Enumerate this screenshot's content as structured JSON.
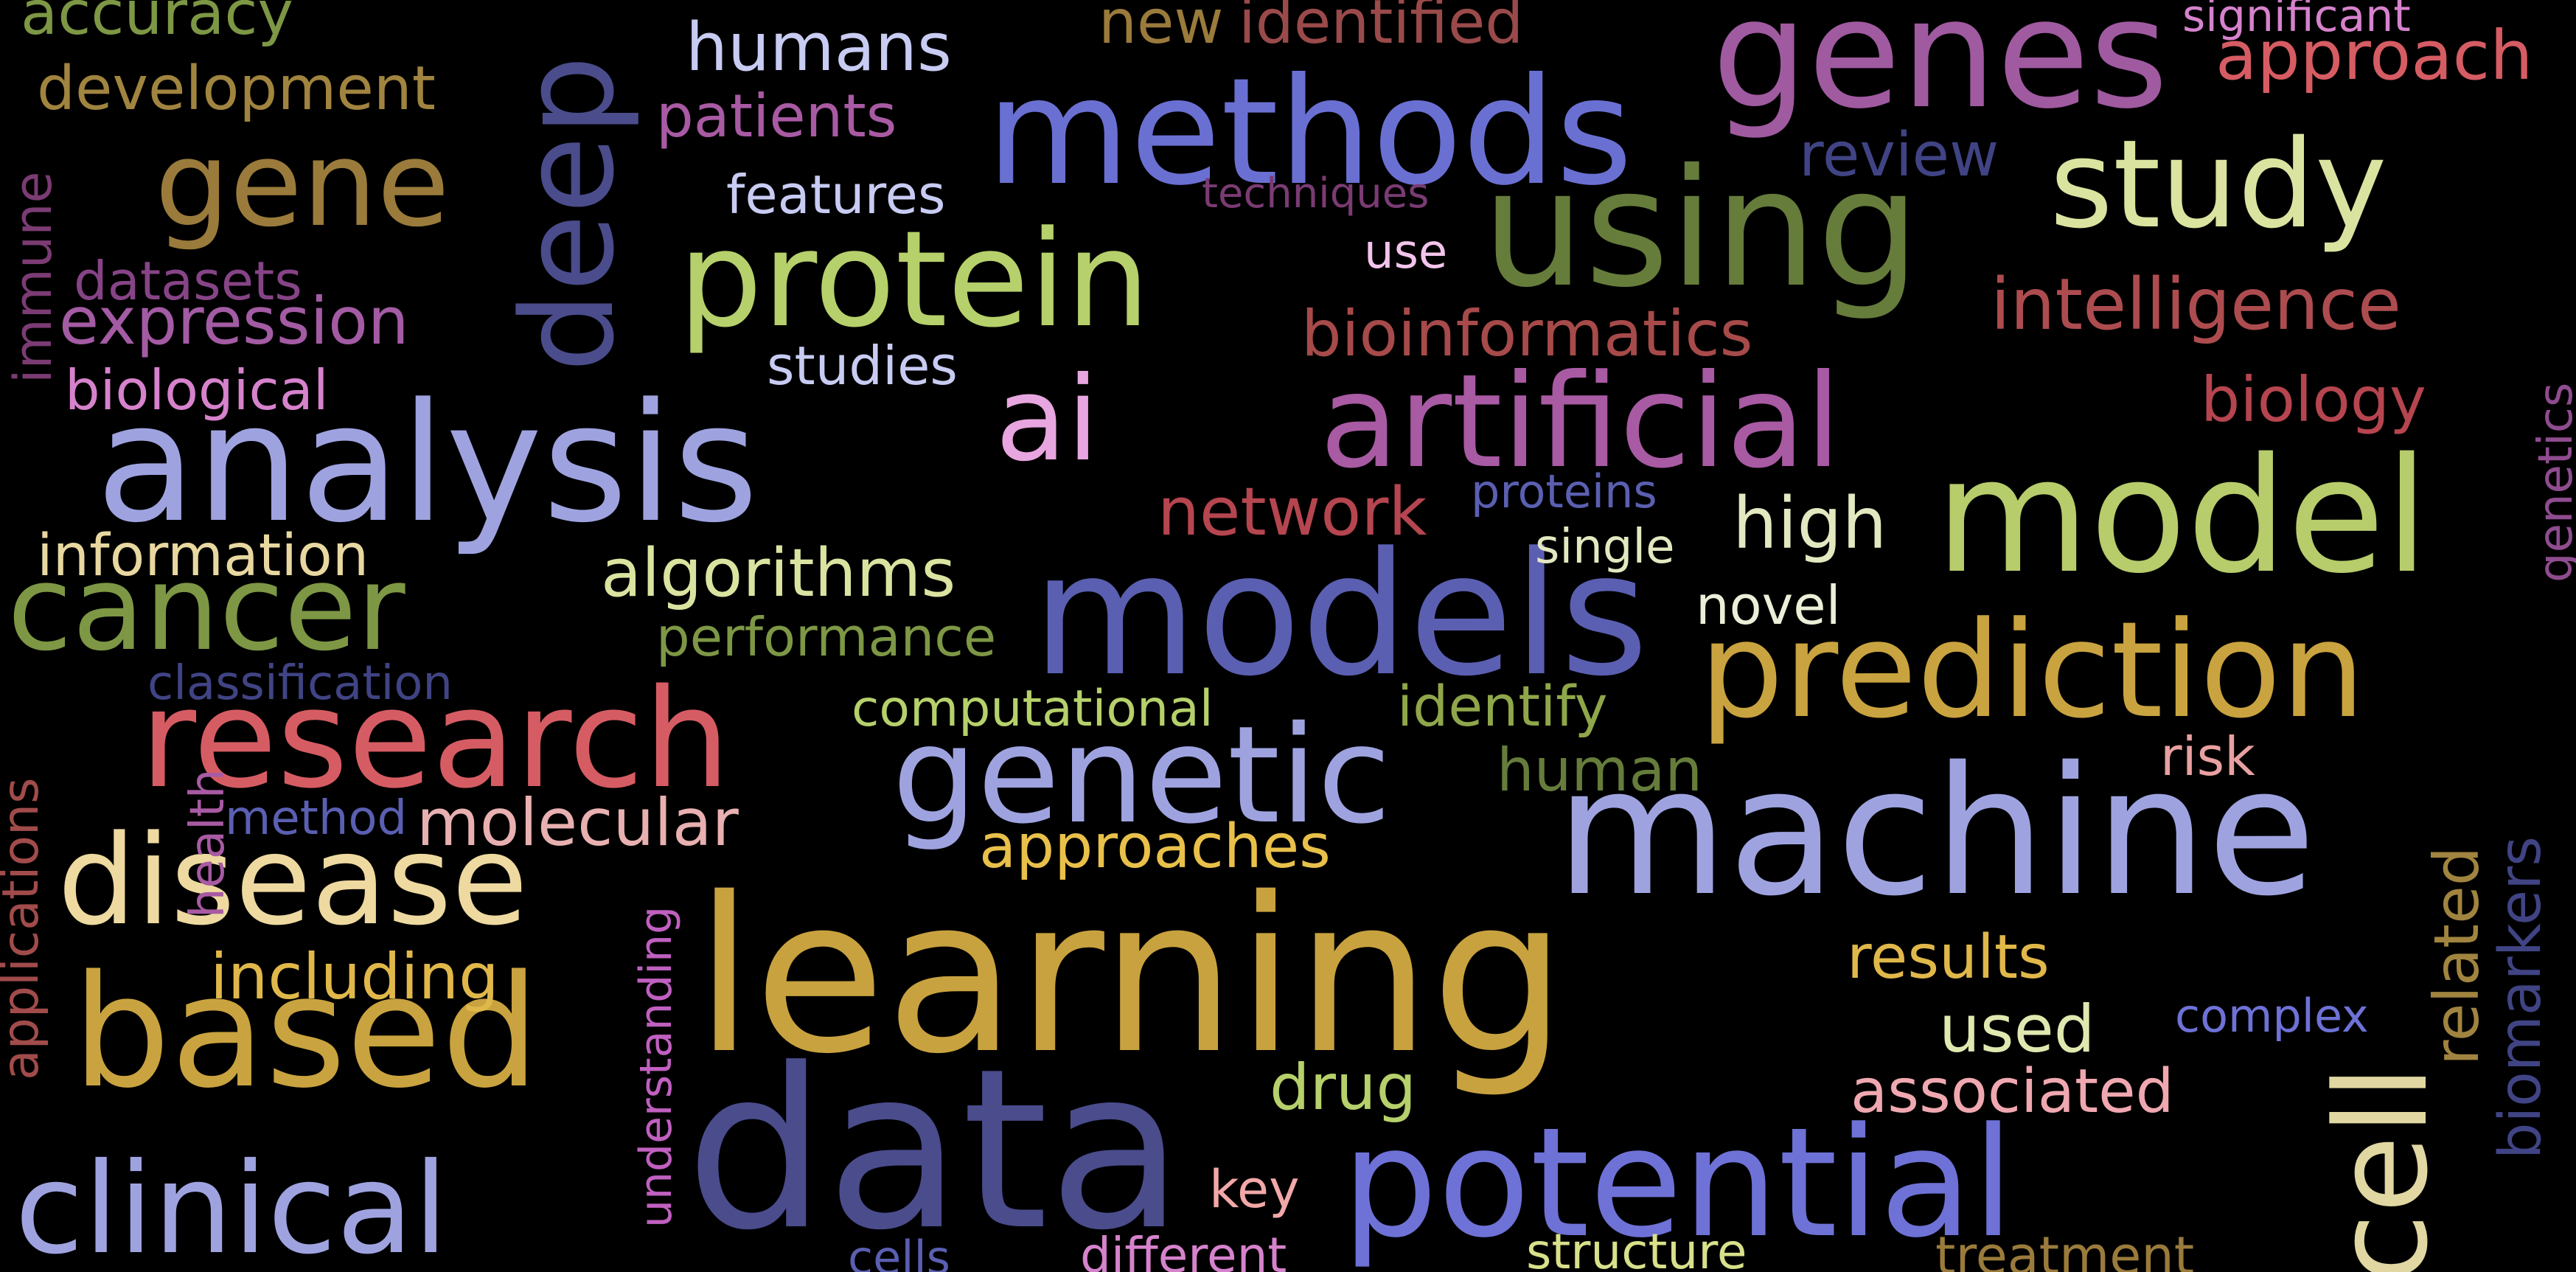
{
  "words": {
    "learning": {
      "text": "learning",
      "color": "#c8a23f"
    },
    "data": {
      "text": "data",
      "color": "#4a4c8c"
    },
    "machine": {
      "text": "machine",
      "color": "#9ea3e0"
    },
    "models": {
      "text": "models",
      "color": "#5a5fb1"
    },
    "analysis": {
      "text": "analysis",
      "color": "#9ea3e0"
    },
    "using": {
      "text": "using",
      "color": "#667c3b"
    },
    "model": {
      "text": "model",
      "color": "#b7cc6b"
    },
    "genes": {
      "text": "genes",
      "color": "#a05aa0"
    },
    "methods": {
      "text": "methods",
      "color": "#6a70d2"
    },
    "based": {
      "text": "based",
      "color": "#c9a33f"
    },
    "potential": {
      "text": "potential",
      "color": "#6e72d6"
    },
    "research": {
      "text": "research",
      "color": "#d65c63"
    },
    "prediction": {
      "text": "prediction",
      "color": "#c9a33f"
    },
    "protein": {
      "text": "protein",
      "color": "#b6d06b"
    },
    "genetic": {
      "text": "genetic",
      "color": "#9ea3e0"
    },
    "artificial": {
      "text": "artificial",
      "color": "#a85aa3"
    },
    "clinical": {
      "text": "clinical",
      "color": "#9ea3e0"
    },
    "disease": {
      "text": "disease",
      "color": "#eed9a0"
    },
    "cancer": {
      "text": "cancer",
      "color": "#7d9745"
    },
    "study": {
      "text": "study",
      "color": "#dbe3a0"
    },
    "gene": {
      "text": "gene",
      "color": "#9a7b3b"
    },
    "ai": {
      "text": "ai",
      "color": "#e7a6df"
    },
    "cell": {
      "text": "cell",
      "color": "#e0d7a2"
    },
    "deep": {
      "text": "deep",
      "color": "#4a4c8c"
    },
    "intelligence": {
      "text": "intelligence",
      "color": "#ad4c4f"
    },
    "bioinformatics": {
      "text": "bioinformatics",
      "color": "#a74a4a"
    },
    "approach": {
      "text": "approach",
      "color": "#d65c63"
    },
    "identified": {
      "text": "identified",
      "color": "#9a4a4a"
    },
    "new": {
      "text": "new",
      "color": "#9a7b3b"
    },
    "humans": {
      "text": "humans",
      "color": "#c8cbf2"
    },
    "accuracy": {
      "text": "accuracy",
      "color": "#7d9745"
    },
    "development": {
      "text": "development",
      "color": "#a0843f"
    },
    "patients": {
      "text": "patients",
      "color": "#a85aa3"
    },
    "review": {
      "text": "review",
      "color": "#404484"
    },
    "features": {
      "text": "features",
      "color": "#c8cbf2"
    },
    "techniques": {
      "text": "techniques",
      "color": "#7b3b73"
    },
    "use": {
      "text": "use",
      "color": "#f2c4ec"
    },
    "significant": {
      "text": "significant",
      "color": "#d682cc"
    },
    "datasets": {
      "text": "datasets",
      "color": "#864486"
    },
    "expression": {
      "text": "expression",
      "color": "#a35ba3"
    },
    "studies": {
      "text": "studies",
      "color": "#c8cbf2"
    },
    "biological": {
      "text": "biological",
      "color": "#d682cc"
    },
    "immune": {
      "text": "immune",
      "color": "#7b3b73"
    },
    "biology": {
      "text": "biology",
      "color": "#b5454f"
    },
    "network": {
      "text": "network",
      "color": "#b5454f"
    },
    "proteins": {
      "text": "proteins",
      "color": "#5a5fb1"
    },
    "high": {
      "text": "high",
      "color": "#e3e8c0"
    },
    "single": {
      "text": "single",
      "color": "#e3e8c0"
    },
    "novel": {
      "text": "novel",
      "color": "#ecefd8"
    },
    "genetics": {
      "text": "genetics",
      "color": "#8f4c8f"
    },
    "information": {
      "text": "information",
      "color": "#e8d8a0"
    },
    "algorithms": {
      "text": "algorithms",
      "color": "#dbe3a0"
    },
    "performance": {
      "text": "performance",
      "color": "#7d9745"
    },
    "classification": {
      "text": "classification",
      "color": "#404484"
    },
    "computational": {
      "text": "computational",
      "color": "#b6d06b"
    },
    "identify": {
      "text": "identify",
      "color": "#8fa74a"
    },
    "human": {
      "text": "human",
      "color": "#667c3b"
    },
    "risk": {
      "text": "risk",
      "color": "#e8a0a0"
    },
    "method": {
      "text": "method",
      "color": "#5a5fb1"
    },
    "health": {
      "text": "health",
      "color": "#a85aa3"
    },
    "molecular": {
      "text": "molecular",
      "color": "#e8b0b0"
    },
    "approaches": {
      "text": "approaches",
      "color": "#e8c04a"
    },
    "applications": {
      "text": "applications",
      "color": "#a14b4b"
    },
    "understanding": {
      "text": "understanding",
      "color": "#c060c0"
    },
    "including": {
      "text": "including",
      "color": "#e0b84a"
    },
    "results": {
      "text": "results",
      "color": "#e0b84a"
    },
    "related": {
      "text": "related",
      "color": "#a0843f"
    },
    "biomarkers": {
      "text": "biomarkers",
      "color": "#404484"
    },
    "used": {
      "text": "used",
      "color": "#e0e8b0"
    },
    "complex": {
      "text": "complex",
      "color": "#6e72d6"
    },
    "drug": {
      "text": "drug",
      "color": "#b6d06b"
    },
    "associated": {
      "text": "associated",
      "color": "#f0a8b0"
    },
    "key": {
      "text": "key",
      "color": "#f2a8a8"
    },
    "cells": {
      "text": "cells",
      "color": "#5a5fb1"
    },
    "different": {
      "text": "different",
      "color": "#d682cc"
    },
    "structure": {
      "text": "structure",
      "color": "#d8e08a"
    },
    "treatment": {
      "text": "treatment",
      "color": "#9a7b3b"
    }
  }
}
